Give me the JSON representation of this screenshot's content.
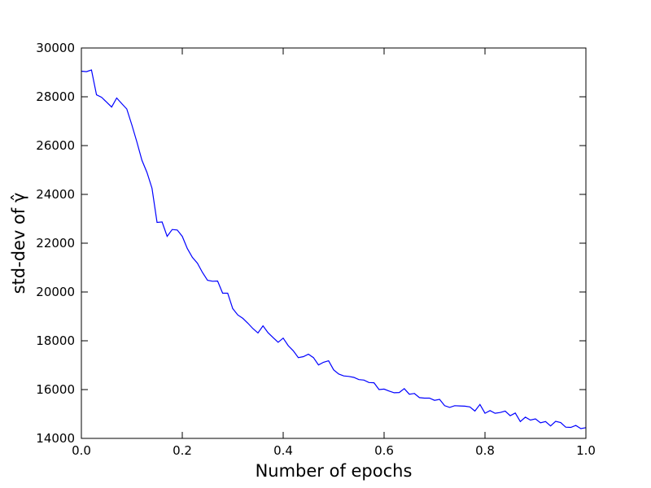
{
  "chart_data": {
    "type": "line",
    "xlabel": "Number of epochs",
    "ylabel": "std-dev of γ̂",
    "x": [
      0,
      0.01,
      0.02,
      0.03,
      0.04,
      0.05,
      0.06,
      0.07,
      0.08,
      0.09,
      0.1,
      0.11,
      0.12,
      0.13,
      0.14,
      0.15,
      0.16,
      0.17,
      0.18,
      0.19,
      0.2,
      0.21,
      0.22,
      0.23,
      0.24,
      0.25,
      0.26,
      0.27,
      0.28,
      0.29,
      0.3,
      0.31,
      0.32,
      0.33,
      0.34,
      0.35,
      0.36,
      0.37,
      0.38,
      0.39,
      0.4,
      0.41,
      0.42,
      0.43,
      0.44,
      0.45,
      0.46,
      0.47,
      0.48,
      0.49,
      0.5,
      0.51,
      0.52,
      0.53,
      0.54,
      0.55,
      0.56,
      0.57,
      0.58,
      0.59,
      0.6,
      0.61,
      0.62,
      0.63,
      0.64,
      0.65,
      0.66,
      0.67,
      0.68,
      0.69,
      0.7,
      0.71,
      0.72,
      0.73,
      0.74,
      0.75,
      0.76,
      0.77,
      0.78,
      0.79,
      0.8,
      0.81,
      0.82,
      0.83,
      0.84,
      0.85,
      0.86,
      0.87,
      0.88,
      0.89,
      0.9,
      0.91,
      0.92,
      0.93,
      0.94,
      0.95,
      0.96,
      0.97,
      0.98,
      0.99,
      1.0
    ],
    "series": [
      {
        "color": "#0000ff",
        "values": [
          29050,
          29030,
          29100,
          28080,
          27980,
          27780,
          27580,
          27950,
          27720,
          27500,
          26850,
          26150,
          25400,
          24900,
          24250,
          22850,
          22870,
          22280,
          22560,
          22540,
          22280,
          21780,
          21420,
          21180,
          20800,
          20480,
          20440,
          20450,
          19950,
          19950,
          19320,
          19060,
          18920,
          18720,
          18500,
          18320,
          18610,
          18330,
          18130,
          17940,
          18110,
          17800,
          17590,
          17310,
          17350,
          17450,
          17310,
          17010,
          17120,
          17180,
          16810,
          16640,
          16560,
          16540,
          16500,
          16410,
          16390,
          16290,
          16280,
          16000,
          16020,
          15940,
          15870,
          15880,
          16040,
          15810,
          15840,
          15670,
          15650,
          15650,
          15560,
          15600,
          15340,
          15270,
          15340,
          15330,
          15320,
          15290,
          15120,
          15390,
          15030,
          15140,
          15030,
          15060,
          15120,
          14930,
          15040,
          14690,
          14870,
          14750,
          14800,
          14640,
          14690,
          14510,
          14700,
          14650,
          14460,
          14450,
          14530,
          14400,
          14440
        ]
      }
    ],
    "xlim": [
      0,
      1
    ],
    "xticks": [
      {
        "value": 0,
        "label": "0.0"
      },
      0.2,
      0.4,
      0.6,
      0.8,
      {
        "value": 1,
        "label": "1.0"
      }
    ],
    "ylim": [
      14000,
      30000
    ],
    "yticks": [
      14000,
      16000,
      18000,
      20000,
      22000,
      24000,
      26000,
      28000,
      30000
    ],
    "grid": false
  }
}
